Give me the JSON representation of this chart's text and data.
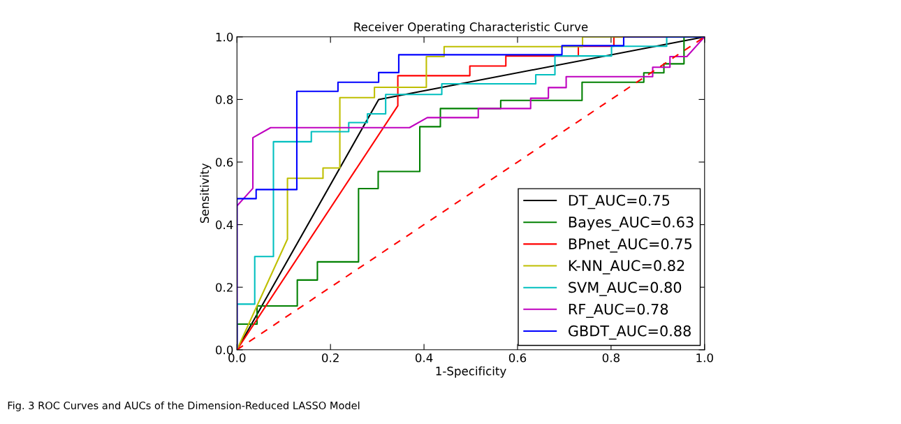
{
  "chart_data": {
    "type": "line",
    "title": "Receiver Operating Characteristic Curve",
    "xlabel": "1-Specificity",
    "ylabel": "Sensitivity",
    "xlim": [
      0,
      1
    ],
    "ylim": [
      0,
      1
    ],
    "xticks": [
      {
        "value": 0,
        "label": "0.0"
      },
      {
        "value": 0.2,
        "label": "0.2"
      },
      {
        "value": 0.4,
        "label": "0.4"
      },
      {
        "value": 0.6,
        "label": "0.6"
      },
      {
        "value": 0.8,
        "label": "0.8"
      },
      {
        "value": 1,
        "label": "1.0"
      }
    ],
    "yticks": [
      {
        "value": 0,
        "label": "0.0"
      },
      {
        "value": 0.2,
        "label": "0.2"
      },
      {
        "value": 0.4,
        "label": "0.4"
      },
      {
        "value": 0.6,
        "label": "0.6"
      },
      {
        "value": 0.8,
        "label": "0.8"
      },
      {
        "value": 1,
        "label": "1.0"
      }
    ],
    "grid": false,
    "legend": "bottom right",
    "line_style": "solid",
    "annotations": [
      "Fig. 3 ROC Curves and AUCs of the Dimension-Reduced LASSO Model"
    ],
    "series": [
      {
        "name": "DT_AUC=0.75",
        "color": "#000000",
        "x": [
          0,
          0.303,
          1
        ],
        "values": [
          0,
          0.8,
          1
        ]
      },
      {
        "name": "Bayes_AUC=0.63",
        "color": "#008000",
        "x": [
          0,
          0,
          0.043,
          0.043,
          0.129,
          0.129,
          0.172,
          0.172,
          0.26,
          0.26,
          0.302,
          0.302,
          0.391,
          0.391,
          0.435,
          0.435,
          0.564,
          0.564,
          0.738,
          0.738,
          0.87,
          0.87,
          0.913,
          0.913,
          0.956,
          0.956,
          1
        ],
        "values": [
          0,
          0.082,
          0.082,
          0.14,
          0.14,
          0.223,
          0.223,
          0.281,
          0.281,
          0.515,
          0.515,
          0.57,
          0.57,
          0.713,
          0.713,
          0.771,
          0.771,
          0.797,
          0.797,
          0.855,
          0.855,
          0.885,
          0.885,
          0.914,
          0.914,
          1,
          1
        ]
      },
      {
        "name": "BPnet_AUC=0.75",
        "color": "#ff0000",
        "x": [
          0,
          0.344,
          0.344,
          0.498,
          0.498,
          0.575,
          0.575,
          0.73,
          0.73,
          0.806,
          0.806,
          1
        ],
        "values": [
          0,
          0.78,
          0.876,
          0.876,
          0.907,
          0.907,
          0.939,
          0.939,
          0.97,
          0.97,
          1,
          1
        ]
      },
      {
        "name": "K-NN_AUC=0.82",
        "color": "#bfbf00",
        "x": [
          0,
          0.108,
          0.108,
          0.184,
          0.184,
          0.22,
          0.22,
          0.294,
          0.294,
          0.405,
          0.405,
          0.443,
          0.443,
          0.739,
          0.739,
          1
        ],
        "values": [
          0,
          0.354,
          0.548,
          0.548,
          0.581,
          0.581,
          0.806,
          0.806,
          0.839,
          0.839,
          0.937,
          0.937,
          0.969,
          0.969,
          1,
          1
        ]
      },
      {
        "name": "SVM_AUC=0.80",
        "color": "#00bfbf",
        "x": [
          0,
          0,
          0.038,
          0.038,
          0.078,
          0.078,
          0.159,
          0.159,
          0.239,
          0.239,
          0.279,
          0.279,
          0.318,
          0.318,
          0.438,
          0.438,
          0.639,
          0.639,
          0.68,
          0.68,
          0.801,
          0.801,
          0.919,
          0.919,
          1
        ],
        "values": [
          0,
          0.146,
          0.146,
          0.298,
          0.298,
          0.665,
          0.665,
          0.697,
          0.697,
          0.726,
          0.726,
          0.754,
          0.754,
          0.816,
          0.816,
          0.85,
          0.85,
          0.879,
          0.879,
          0.939,
          0.939,
          0.97,
          0.97,
          1,
          1
        ]
      },
      {
        "name": "RF_AUC=0.78",
        "color": "#bf00bf",
        "x": [
          0,
          0,
          0.034,
          0.034,
          0.072,
          0.369,
          0.407,
          0.516,
          0.516,
          0.628,
          0.628,
          0.666,
          0.666,
          0.704,
          0.704,
          0.889,
          0.889,
          0.926,
          0.926,
          0.962,
          1
        ],
        "values": [
          0,
          0.46,
          0.516,
          0.678,
          0.71,
          0.71,
          0.742,
          0.742,
          0.771,
          0.771,
          0.804,
          0.804,
          0.838,
          0.838,
          0.873,
          0.873,
          0.903,
          0.903,
          0.937,
          0.937,
          1
        ]
      },
      {
        "name": "GBDT_AUC=0.88",
        "color": "#0000ff",
        "x": [
          0,
          0,
          0.041,
          0.041,
          0.128,
          0.128,
          0.216,
          0.216,
          0.303,
          0.303,
          0.346,
          0.346,
          0.695,
          0.695,
          0.827,
          0.827,
          1
        ],
        "values": [
          0,
          0.483,
          0.483,
          0.512,
          0.512,
          0.826,
          0.826,
          0.855,
          0.855,
          0.886,
          0.886,
          0.943,
          0.943,
          0.972,
          0.972,
          1,
          1
        ]
      },
      {
        "color": "#ff0000",
        "line_style": "dashed",
        "x": [
          0,
          1
        ],
        "values": [
          0,
          1
        ]
      }
    ]
  }
}
